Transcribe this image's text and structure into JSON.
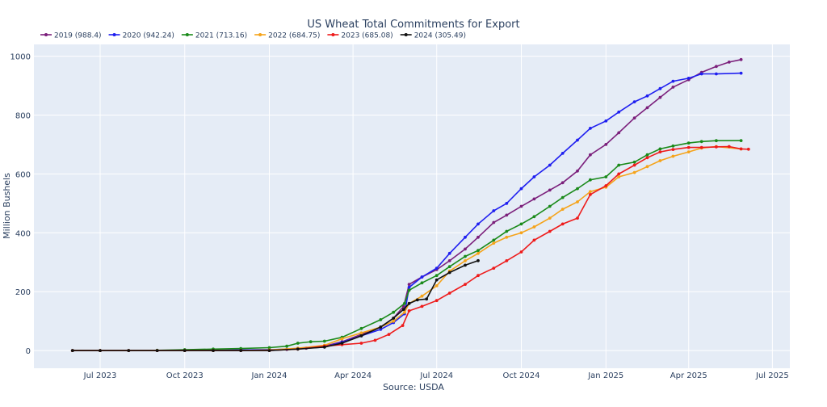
{
  "chart_data": {
    "type": "line",
    "title": "US Wheat Total Commitments for Export",
    "xlabel": "Source: USDA",
    "ylabel": "Million Bushels",
    "x_type": "date",
    "xlim": [
      "2023-04-20",
      "2025-07-20"
    ],
    "ylim": [
      -60,
      1040
    ],
    "x_ticks": [
      {
        "date": "2023-07-01",
        "label": "Jul 2023"
      },
      {
        "date": "2023-10-01",
        "label": "Oct 2023"
      },
      {
        "date": "2024-01-01",
        "label": "Jan 2024"
      },
      {
        "date": "2024-04-01",
        "label": "Apr 2024"
      },
      {
        "date": "2024-07-01",
        "label": "Jul 2024"
      },
      {
        "date": "2024-10-01",
        "label": "Oct 2024"
      },
      {
        "date": "2025-01-01",
        "label": "Jan 2025"
      },
      {
        "date": "2025-04-01",
        "label": "Apr 2025"
      },
      {
        "date": "2025-07-01",
        "label": "Jul 2025"
      }
    ],
    "y_ticks": [
      0,
      200,
      400,
      600,
      800,
      1000
    ],
    "grid": true,
    "legend_position": "top-left",
    "series": [
      {
        "name": "2019 (988.4)",
        "color": "#7b1f7b",
        "points": [
          [
            "2023-06-01",
            0
          ],
          [
            "2023-07-01",
            0
          ],
          [
            "2023-08-01",
            0
          ],
          [
            "2023-09-01",
            0
          ],
          [
            "2023-10-01",
            0
          ],
          [
            "2023-11-01",
            1
          ],
          [
            "2023-12-01",
            2
          ],
          [
            "2024-01-01",
            3
          ],
          [
            "2024-01-20",
            4
          ],
          [
            "2024-02-10",
            8
          ],
          [
            "2024-03-01",
            15
          ],
          [
            "2024-03-20",
            30
          ],
          [
            "2024-04-10",
            55
          ],
          [
            "2024-05-01",
            80
          ],
          [
            "2024-05-15",
            110
          ],
          [
            "2024-05-26",
            150
          ],
          [
            "2024-06-01",
            225
          ],
          [
            "2024-06-15",
            250
          ],
          [
            "2024-07-01",
            275
          ],
          [
            "2024-07-15",
            305
          ],
          [
            "2024-08-01",
            345
          ],
          [
            "2024-08-15",
            385
          ],
          [
            "2024-09-01",
            435
          ],
          [
            "2024-09-15",
            460
          ],
          [
            "2024-10-01",
            490
          ],
          [
            "2024-10-15",
            515
          ],
          [
            "2024-11-01",
            545
          ],
          [
            "2024-11-15",
            570
          ],
          [
            "2024-12-01",
            610
          ],
          [
            "2024-12-15",
            665
          ],
          [
            "2025-01-01",
            700
          ],
          [
            "2025-01-15",
            740
          ],
          [
            "2025-02-01",
            790
          ],
          [
            "2025-02-15",
            825
          ],
          [
            "2025-03-01",
            860
          ],
          [
            "2025-03-15",
            895
          ],
          [
            "2025-04-01",
            920
          ],
          [
            "2025-04-15",
            945
          ],
          [
            "2025-05-01",
            965
          ],
          [
            "2025-05-15",
            980
          ],
          [
            "2025-05-28",
            988.4
          ]
        ]
      },
      {
        "name": "2020 (942.24)",
        "color": "#1f1ff0",
        "points": [
          [
            "2023-06-01",
            0
          ],
          [
            "2023-07-01",
            0
          ],
          [
            "2023-08-01",
            0
          ],
          [
            "2023-09-01",
            0
          ],
          [
            "2023-10-01",
            0
          ],
          [
            "2023-11-01",
            1
          ],
          [
            "2023-12-01",
            2
          ],
          [
            "2024-01-01",
            3
          ],
          [
            "2024-02-01",
            6
          ],
          [
            "2024-03-01",
            12
          ],
          [
            "2024-03-20",
            28
          ],
          [
            "2024-04-10",
            50
          ],
          [
            "2024-05-01",
            72
          ],
          [
            "2024-05-15",
            95
          ],
          [
            "2024-05-27",
            125
          ],
          [
            "2024-06-01",
            215
          ],
          [
            "2024-06-15",
            250
          ],
          [
            "2024-07-01",
            280
          ],
          [
            "2024-07-15",
            330
          ],
          [
            "2024-08-01",
            385
          ],
          [
            "2024-08-15",
            430
          ],
          [
            "2024-09-01",
            475
          ],
          [
            "2024-09-15",
            500
          ],
          [
            "2024-10-01",
            550
          ],
          [
            "2024-10-15",
            590
          ],
          [
            "2024-11-01",
            630
          ],
          [
            "2024-11-15",
            670
          ],
          [
            "2024-12-01",
            715
          ],
          [
            "2024-12-15",
            755
          ],
          [
            "2025-01-01",
            780
          ],
          [
            "2025-01-15",
            810
          ],
          [
            "2025-02-01",
            845
          ],
          [
            "2025-02-15",
            865
          ],
          [
            "2025-03-01",
            890
          ],
          [
            "2025-03-15",
            915
          ],
          [
            "2025-04-01",
            925
          ],
          [
            "2025-04-15",
            940
          ],
          [
            "2025-05-01",
            940
          ],
          [
            "2025-05-28",
            942.24
          ]
        ]
      },
      {
        "name": "2021 (713.16)",
        "color": "#1a8a1a",
        "points": [
          [
            "2023-06-01",
            0
          ],
          [
            "2023-07-01",
            0
          ],
          [
            "2023-08-01",
            0
          ],
          [
            "2023-09-01",
            1
          ],
          [
            "2023-10-01",
            3
          ],
          [
            "2023-11-01",
            5
          ],
          [
            "2023-12-01",
            7
          ],
          [
            "2024-01-01",
            10
          ],
          [
            "2024-01-20",
            15
          ],
          [
            "2024-02-01",
            25
          ],
          [
            "2024-02-15",
            30
          ],
          [
            "2024-03-01",
            32
          ],
          [
            "2024-03-20",
            45
          ],
          [
            "2024-04-10",
            75
          ],
          [
            "2024-05-01",
            105
          ],
          [
            "2024-05-15",
            130
          ],
          [
            "2024-05-27",
            160
          ],
          [
            "2024-06-01",
            205
          ],
          [
            "2024-06-15",
            230
          ],
          [
            "2024-07-01",
            255
          ],
          [
            "2024-07-15",
            285
          ],
          [
            "2024-08-01",
            320
          ],
          [
            "2024-08-15",
            340
          ],
          [
            "2024-09-01",
            375
          ],
          [
            "2024-09-15",
            405
          ],
          [
            "2024-10-01",
            430
          ],
          [
            "2024-10-15",
            455
          ],
          [
            "2024-11-01",
            490
          ],
          [
            "2024-11-15",
            520
          ],
          [
            "2024-12-01",
            550
          ],
          [
            "2024-12-15",
            580
          ],
          [
            "2025-01-01",
            590
          ],
          [
            "2025-01-15",
            630
          ],
          [
            "2025-02-01",
            640
          ],
          [
            "2025-02-15",
            665
          ],
          [
            "2025-03-01",
            685
          ],
          [
            "2025-03-15",
            695
          ],
          [
            "2025-04-01",
            705
          ],
          [
            "2025-04-15",
            710
          ],
          [
            "2025-05-01",
            713
          ],
          [
            "2025-05-28",
            713.16
          ]
        ]
      },
      {
        "name": "2022 (684.75)",
        "color": "#f5a31a",
        "points": [
          [
            "2023-06-01",
            0
          ],
          [
            "2023-07-01",
            0
          ],
          [
            "2023-08-01",
            0
          ],
          [
            "2023-09-01",
            0
          ],
          [
            "2023-10-01",
            0
          ],
          [
            "2023-11-01",
            0
          ],
          [
            "2023-12-01",
            0
          ],
          [
            "2024-01-01",
            2
          ],
          [
            "2024-02-01",
            8
          ],
          [
            "2024-03-01",
            18
          ],
          [
            "2024-03-20",
            40
          ],
          [
            "2024-04-10",
            60
          ],
          [
            "2024-05-01",
            80
          ],
          [
            "2024-05-15",
            100
          ],
          [
            "2024-05-27",
            130
          ],
          [
            "2024-06-01",
            160
          ],
          [
            "2024-06-15",
            185
          ],
          [
            "2024-07-01",
            220
          ],
          [
            "2024-07-15",
            270
          ],
          [
            "2024-08-01",
            305
          ],
          [
            "2024-08-15",
            330
          ],
          [
            "2024-09-01",
            365
          ],
          [
            "2024-09-15",
            385
          ],
          [
            "2024-10-01",
            400
          ],
          [
            "2024-10-15",
            420
          ],
          [
            "2024-11-01",
            450
          ],
          [
            "2024-11-15",
            480
          ],
          [
            "2024-12-01",
            505
          ],
          [
            "2024-12-15",
            540
          ],
          [
            "2025-01-01",
            555
          ],
          [
            "2025-01-15",
            590
          ],
          [
            "2025-02-01",
            605
          ],
          [
            "2025-02-15",
            625
          ],
          [
            "2025-03-01",
            645
          ],
          [
            "2025-03-15",
            660
          ],
          [
            "2025-04-01",
            675
          ],
          [
            "2025-04-15",
            688
          ],
          [
            "2025-05-01",
            693
          ],
          [
            "2025-05-28",
            684.75
          ]
        ]
      },
      {
        "name": "2023 (685.08)",
        "color": "#ee1b1b",
        "points": [
          [
            "2023-06-01",
            0
          ],
          [
            "2023-07-01",
            0
          ],
          [
            "2023-08-01",
            0
          ],
          [
            "2023-09-01",
            0
          ],
          [
            "2023-10-01",
            0
          ],
          [
            "2023-11-01",
            0
          ],
          [
            "2023-12-01",
            0
          ],
          [
            "2024-01-01",
            0
          ],
          [
            "2024-02-01",
            5
          ],
          [
            "2024-03-01",
            15
          ],
          [
            "2024-03-20",
            20
          ],
          [
            "2024-04-10",
            25
          ],
          [
            "2024-04-25",
            35
          ],
          [
            "2024-05-10",
            55
          ],
          [
            "2024-05-25",
            85
          ],
          [
            "2024-06-01",
            135
          ],
          [
            "2024-06-15",
            150
          ],
          [
            "2024-07-01",
            170
          ],
          [
            "2024-07-15",
            195
          ],
          [
            "2024-08-01",
            225
          ],
          [
            "2024-08-15",
            255
          ],
          [
            "2024-09-01",
            280
          ],
          [
            "2024-09-15",
            305
          ],
          [
            "2024-10-01",
            335
          ],
          [
            "2024-10-15",
            375
          ],
          [
            "2024-11-01",
            405
          ],
          [
            "2024-11-15",
            430
          ],
          [
            "2024-12-01",
            450
          ],
          [
            "2024-12-15",
            530
          ],
          [
            "2025-01-01",
            560
          ],
          [
            "2025-01-15",
            600
          ],
          [
            "2025-02-01",
            630
          ],
          [
            "2025-02-15",
            655
          ],
          [
            "2025-03-01",
            675
          ],
          [
            "2025-03-15",
            683
          ],
          [
            "2025-04-01",
            690
          ],
          [
            "2025-04-15",
            690
          ],
          [
            "2025-05-01",
            692
          ],
          [
            "2025-05-15",
            693
          ],
          [
            "2025-05-28",
            685.08
          ],
          [
            "2025-06-05",
            684
          ]
        ]
      },
      {
        "name": "2024 (305.49)",
        "color": "#111111",
        "points": [
          [
            "2023-06-01",
            0
          ],
          [
            "2023-07-01",
            0
          ],
          [
            "2023-08-01",
            0
          ],
          [
            "2023-09-01",
            0
          ],
          [
            "2023-10-01",
            0
          ],
          [
            "2023-11-01",
            0
          ],
          [
            "2023-12-01",
            0
          ],
          [
            "2024-01-01",
            0
          ],
          [
            "2024-02-01",
            5
          ],
          [
            "2024-03-01",
            12
          ],
          [
            "2024-03-20",
            25
          ],
          [
            "2024-04-10",
            50
          ],
          [
            "2024-05-01",
            80
          ],
          [
            "2024-05-15",
            110
          ],
          [
            "2024-05-26",
            140
          ],
          [
            "2024-06-01",
            160
          ],
          [
            "2024-06-10",
            172
          ],
          [
            "2024-06-20",
            175
          ],
          [
            "2024-07-01",
            240
          ],
          [
            "2024-07-15",
            265
          ],
          [
            "2024-08-01",
            290
          ],
          [
            "2024-08-15",
            305.49
          ]
        ]
      }
    ]
  }
}
